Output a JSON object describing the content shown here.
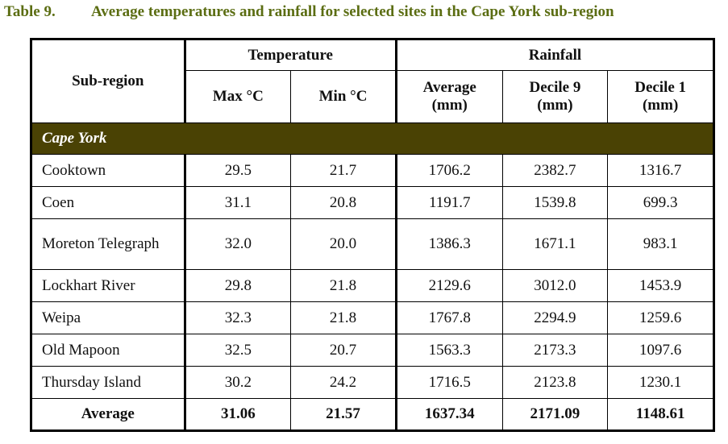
{
  "title": {
    "number": "Table 9.",
    "text": "Average temperatures and rainfall for selected sites in the Cape York sub-region"
  },
  "header": {
    "subregion": "Sub-region",
    "temperature": "Temperature",
    "rainfall": "Rainfall",
    "cols": [
      "Max °C",
      "Min °C",
      "Average (mm)",
      "Decile 9 (mm)",
      "Decile 1 (mm)"
    ]
  },
  "group": "Cape York",
  "rows": [
    {
      "name": "Cooktown",
      "v": [
        "29.5",
        "21.7",
        "1706.2",
        "2382.7",
        "1316.7"
      ]
    },
    {
      "name": "Coen",
      "v": [
        "31.1",
        "20.8",
        "1191.7",
        "1539.8",
        "699.3"
      ]
    },
    {
      "name": "Moreton Telegraph",
      "v": [
        "32.0",
        "20.0",
        "1386.3",
        "1671.1",
        "983.1"
      ]
    },
    {
      "name": "Lockhart River",
      "v": [
        "29.8",
        "21.8",
        "2129.6",
        "3012.0",
        "1453.9"
      ]
    },
    {
      "name": "Weipa",
      "v": [
        "32.3",
        "21.8",
        "1767.8",
        "2294.9",
        "1259.6"
      ]
    },
    {
      "name": "Old Mapoon",
      "v": [
        "32.5",
        "20.7",
        "1563.3",
        "2173.3",
        "1097.6"
      ]
    },
    {
      "name": "Thursday Island",
      "v": [
        "30.2",
        "24.2",
        "1716.5",
        "2123.8",
        "1230.1"
      ]
    }
  ],
  "average": {
    "name": "Average",
    "v": [
      "31.06",
      "21.57",
      "1637.34",
      "2171.09",
      "1148.61"
    ]
  }
}
